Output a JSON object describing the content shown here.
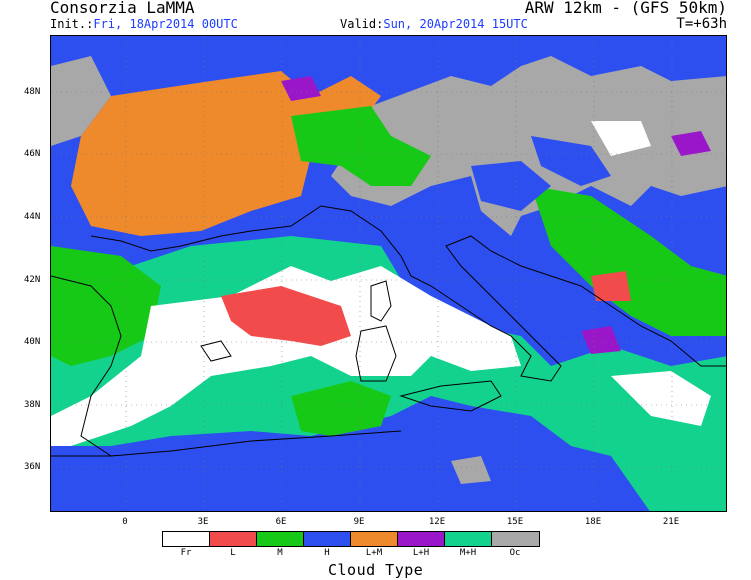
{
  "header": {
    "org": "Consorzia LaMMA",
    "model": "ARW 12km - (GFS 50km)",
    "init_label": "Init.:",
    "init_value": "Fri, 18Apr2014 00UTC",
    "valid_label": "Valid:",
    "valid_value": "Sun, 20Apr2014 15UTC",
    "forecast_step": "T=+63h"
  },
  "axes": {
    "lat_labels": [
      "48N",
      "46N",
      "44N",
      "42N",
      "40N",
      "38N",
      "36N"
    ],
    "lon_labels": [
      "0",
      "3E",
      "6E",
      "9E",
      "12E",
      "15E",
      "18E",
      "21E"
    ]
  },
  "legend": {
    "title": "Cloud Type",
    "items": [
      {
        "label": "Fr",
        "color": "#ffffff"
      },
      {
        "label": "L",
        "color": "#f24b4b"
      },
      {
        "label": "M",
        "color": "#17c917"
      },
      {
        "label": "H",
        "color": "#2e4ff0"
      },
      {
        "label": "L+M",
        "color": "#ef8a2c"
      },
      {
        "label": "L+H",
        "color": "#9a17c9"
      },
      {
        "label": "M+H",
        "color": "#13d28e"
      },
      {
        "label": "Oc",
        "color": "#a8a8a8"
      }
    ]
  },
  "colors": {
    "clear": "#ffffff",
    "low": "#f24b4b",
    "mid": "#17c917",
    "high": "#2e4ff0",
    "low_mid": "#ef8a2c",
    "low_high": "#9a17c9",
    "mid_high": "#13d28e",
    "overcast": "#a8a8a8"
  }
}
